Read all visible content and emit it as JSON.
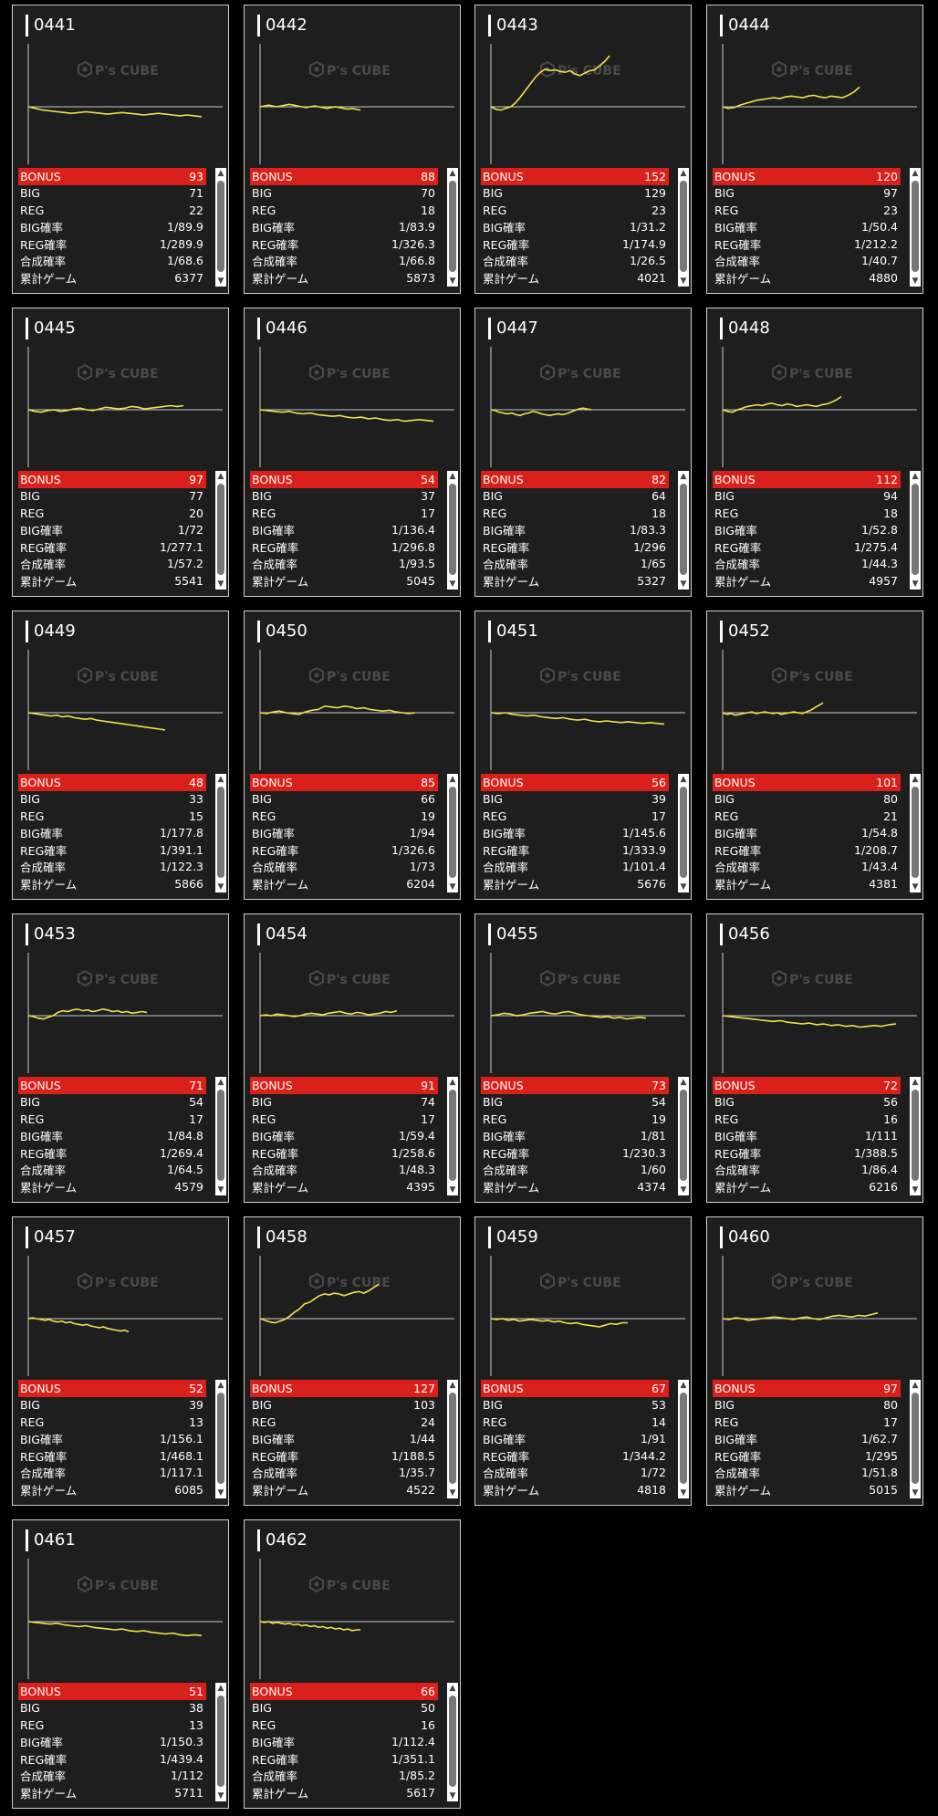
{
  "logo_text": "P's CUBE",
  "colors": {
    "line": "#f2e14a",
    "bonus_bg": "#d9201b",
    "card_bg": "#1e1e1e",
    "axis": "#cccccc"
  },
  "icons": {
    "scroll_up": "▲",
    "scroll_down": "▼"
  },
  "labels": {
    "bonus": "BONUS",
    "big": "BIG",
    "reg": "REG",
    "big_rate": "BIG確率",
    "reg_rate": "REG確率",
    "total_rate": "合成確率",
    "games": "累計ゲーム"
  },
  "machines": [
    {
      "id": "0441",
      "bonus": "93",
      "big": "71",
      "reg": "22",
      "big_rate": "1/89.9",
      "reg_rate": "1/289.9",
      "total_rate": "1/68.6",
      "games": "6377",
      "trend": [
        0,
        -2,
        -4,
        -5,
        -6,
        -7,
        -8,
        -7,
        -6,
        -7,
        -8,
        -9,
        -8,
        -7,
        -8,
        -9,
        -10,
        -9,
        -8,
        -9,
        -10,
        -11,
        -10,
        -11,
        -12
      ]
    },
    {
      "id": "0442",
      "bonus": "88",
      "big": "70",
      "reg": "18",
      "big_rate": "1/83.9",
      "reg_rate": "1/326.3",
      "total_rate": "1/66.8",
      "games": "5873",
      "trend": [
        0,
        1,
        2,
        1,
        0,
        1,
        2,
        3,
        2,
        1,
        0,
        -1,
        0,
        1,
        0,
        -1,
        -2,
        -1,
        0,
        -1,
        -2,
        -3,
        -2,
        -3,
        -4
      ]
    },
    {
      "id": "0443",
      "bonus": "152",
      "big": "129",
      "reg": "23",
      "big_rate": "1/31.2",
      "reg_rate": "1/174.9",
      "total_rate": "1/26.5",
      "games": "4021",
      "trend": [
        0,
        -3,
        -4,
        -2,
        0,
        5,
        12,
        20,
        28,
        36,
        42,
        46,
        44,
        45,
        43,
        42,
        44,
        40,
        38,
        41,
        44,
        45,
        50,
        55,
        62
      ]
    },
    {
      "id": "0444",
      "bonus": "120",
      "big": "97",
      "reg": "23",
      "big_rate": "1/50.4",
      "reg_rate": "1/212.2",
      "total_rate": "1/40.7",
      "games": "4880",
      "trend": [
        0,
        -2,
        -1,
        2,
        4,
        6,
        8,
        9,
        10,
        11,
        10,
        12,
        13,
        12,
        11,
        13,
        14,
        12,
        11,
        13,
        12,
        11,
        14,
        18,
        24
      ]
    },
    {
      "id": "0445",
      "bonus": "97",
      "big": "77",
      "reg": "20",
      "big_rate": "1/72",
      "reg_rate": "1/277.1",
      "total_rate": "1/57.2",
      "games": "5541",
      "trend": [
        0,
        -2,
        -3,
        -1,
        0,
        -2,
        -1,
        1,
        2,
        0,
        -1,
        1,
        3,
        2,
        1,
        2,
        4,
        3,
        1,
        2,
        3,
        4,
        5,
        4,
        5
      ]
    },
    {
      "id": "0446",
      "bonus": "54",
      "big": "37",
      "reg": "17",
      "big_rate": "1/136.4",
      "reg_rate": "1/296.8",
      "total_rate": "1/93.5",
      "games": "5045",
      "trend": [
        0,
        -1,
        -2,
        -3,
        -2,
        -4,
        -5,
        -4,
        -6,
        -7,
        -8,
        -7,
        -9,
        -10,
        -9,
        -11,
        -10,
        -12,
        -13,
        -12,
        -14,
        -13,
        -12,
        -13,
        -14
      ]
    },
    {
      "id": "0447",
      "bonus": "82",
      "big": "64",
      "reg": "18",
      "big_rate": "1/83.3",
      "reg_rate": "1/296",
      "total_rate": "1/65",
      "games": "5327",
      "trend": [
        0,
        -1,
        -3,
        -4,
        -5,
        -4,
        -6,
        -7,
        -5,
        -4,
        -2,
        -3,
        -5,
        -6,
        -7,
        -6,
        -5,
        -6,
        -5,
        -3,
        -1,
        1,
        2,
        1,
        0
      ]
    },
    {
      "id": "0448",
      "bonus": "112",
      "big": "94",
      "reg": "18",
      "big_rate": "1/52.8",
      "reg_rate": "1/275.4",
      "total_rate": "1/44.3",
      "games": "4957",
      "trend": [
        0,
        -2,
        -3,
        0,
        2,
        4,
        5,
        6,
        5,
        7,
        8,
        6,
        5,
        7,
        6,
        4,
        5,
        6,
        5,
        4,
        6,
        7,
        9,
        12,
        16
      ]
    },
    {
      "id": "0449",
      "bonus": "48",
      "big": "33",
      "reg": "15",
      "big_rate": "1/177.8",
      "reg_rate": "1/391.1",
      "total_rate": "1/122.3",
      "games": "5866",
      "trend": [
        0,
        -1,
        -2,
        -3,
        -4,
        -3,
        -5,
        -4,
        -6,
        -7,
        -8,
        -7,
        -9,
        -10,
        -11,
        -12,
        -13,
        -14,
        -15,
        -16,
        -17,
        -18,
        -19,
        -20,
        -21
      ]
    },
    {
      "id": "0450",
      "bonus": "85",
      "big": "66",
      "reg": "19",
      "big_rate": "1/94",
      "reg_rate": "1/326.6",
      "total_rate": "1/73",
      "games": "6204",
      "trend": [
        0,
        -1,
        1,
        2,
        0,
        -1,
        -2,
        1,
        3,
        4,
        8,
        7,
        6,
        8,
        7,
        5,
        6,
        4,
        3,
        2,
        3,
        1,
        0,
        -1,
        0
      ]
    },
    {
      "id": "0451",
      "bonus": "56",
      "big": "39",
      "reg": "17",
      "big_rate": "1/145.6",
      "reg_rate": "1/333.9",
      "total_rate": "1/101.4",
      "games": "5676",
      "trend": [
        0,
        -1,
        0,
        -2,
        -3,
        -4,
        -3,
        -5,
        -6,
        -7,
        -6,
        -8,
        -9,
        -8,
        -10,
        -11,
        -10,
        -11,
        -12,
        -11,
        -12,
        -13,
        -12,
        -13,
        -14
      ]
    },
    {
      "id": "0452",
      "bonus": "101",
      "big": "80",
      "reg": "21",
      "big_rate": "1/54.8",
      "reg_rate": "1/208.7",
      "total_rate": "1/43.4",
      "games": "4381",
      "trend": [
        0,
        -2,
        -1,
        -3,
        -2,
        -1,
        0,
        1,
        -1,
        0,
        1,
        0,
        -1,
        0,
        -2,
        -1,
        0,
        1,
        0,
        -1,
        1,
        3,
        6,
        9,
        12
      ]
    },
    {
      "id": "0453",
      "bonus": "71",
      "big": "54",
      "reg": "17",
      "big_rate": "1/84.8",
      "reg_rate": "1/269.4",
      "total_rate": "1/64.5",
      "games": "4579",
      "trend": [
        0,
        -1,
        -3,
        -4,
        -2,
        0,
        4,
        6,
        5,
        7,
        8,
        6,
        7,
        5,
        6,
        8,
        7,
        5,
        6,
        4,
        5,
        3,
        4,
        5,
        4
      ]
    },
    {
      "id": "0454",
      "bonus": "91",
      "big": "74",
      "reg": "17",
      "big_rate": "1/59.4",
      "reg_rate": "1/258.6",
      "total_rate": "1/48.3",
      "games": "4395",
      "trend": [
        0,
        1,
        0,
        2,
        1,
        0,
        -1,
        0,
        2,
        3,
        2,
        1,
        3,
        4,
        5,
        3,
        2,
        4,
        3,
        1,
        2,
        3,
        5,
        4,
        6
      ]
    },
    {
      "id": "0455",
      "bonus": "73",
      "big": "54",
      "reg": "19",
      "big_rate": "1/81",
      "reg_rate": "1/230.3",
      "total_rate": "1/60",
      "games": "4374",
      "trend": [
        0,
        1,
        3,
        2,
        0,
        1,
        3,
        4,
        5,
        3,
        2,
        4,
        5,
        3,
        1,
        0,
        -1,
        -2,
        -1,
        -3,
        -2,
        -4,
        -3,
        -2,
        -3
      ]
    },
    {
      "id": "0456",
      "bonus": "72",
      "big": "56",
      "reg": "16",
      "big_rate": "1/111",
      "reg_rate": "1/388.5",
      "total_rate": "1/86.4",
      "games": "6216",
      "trend": [
        0,
        -1,
        -2,
        -3,
        -4,
        -5,
        -6,
        -7,
        -6,
        -8,
        -9,
        -10,
        -9,
        -11,
        -10,
        -12,
        -11,
        -13,
        -12,
        -14,
        -13,
        -12,
        -13,
        -11,
        -10
      ]
    },
    {
      "id": "0457",
      "bonus": "52",
      "big": "39",
      "reg": "13",
      "big_rate": "1/156.1",
      "reg_rate": "1/468.1",
      "total_rate": "1/117.1",
      "games": "6085",
      "trend": [
        0,
        1,
        0,
        -1,
        -2,
        -1,
        -3,
        -4,
        -3,
        -5,
        -4,
        -6,
        -7,
        -8,
        -7,
        -9,
        -10,
        -11,
        -10,
        -12,
        -13,
        -14,
        -15,
        -14,
        -16
      ]
    },
    {
      "id": "0458",
      "bonus": "127",
      "big": "103",
      "reg": "24",
      "big_rate": "1/44",
      "reg_rate": "1/188.5",
      "total_rate": "1/35.7",
      "games": "4522",
      "trend": [
        0,
        -2,
        -4,
        -5,
        -3,
        -1,
        3,
        8,
        12,
        18,
        20,
        24,
        28,
        30,
        29,
        31,
        30,
        28,
        30,
        32,
        33,
        31,
        34,
        38,
        42
      ]
    },
    {
      "id": "0459",
      "bonus": "67",
      "big": "53",
      "reg": "14",
      "big_rate": "1/91",
      "reg_rate": "1/344.2",
      "total_rate": "1/72",
      "games": "4818",
      "trend": [
        0,
        -1,
        0,
        -2,
        -1,
        -3,
        -2,
        -1,
        -2,
        -3,
        -2,
        -4,
        -3,
        -5,
        -6,
        -5,
        -7,
        -8,
        -9,
        -10,
        -8,
        -6,
        -7,
        -5,
        -5
      ]
    },
    {
      "id": "0460",
      "bonus": "97",
      "big": "80",
      "reg": "17",
      "big_rate": "1/62.7",
      "reg_rate": "1/295",
      "total_rate": "1/51.8",
      "games": "5015",
      "trend": [
        0,
        -1,
        1,
        0,
        -2,
        -1,
        0,
        1,
        2,
        1,
        0,
        -1,
        1,
        2,
        0,
        -1,
        1,
        3,
        4,
        3,
        2,
        4,
        3,
        5,
        7
      ]
    },
    {
      "id": "0461",
      "bonus": "51",
      "big": "38",
      "reg": "13",
      "big_rate": "1/150.3",
      "reg_rate": "1/439.4",
      "total_rate": "1/112",
      "games": "5711",
      "trend": [
        0,
        -1,
        -2,
        -3,
        -2,
        -4,
        -5,
        -6,
        -5,
        -7,
        -8,
        -9,
        -10,
        -9,
        -11,
        -12,
        -11,
        -13,
        -14,
        -15,
        -14,
        -16,
        -17,
        -16,
        -17
      ]
    },
    {
      "id": "0462",
      "bonus": "66",
      "big": "50",
      "reg": "16",
      "big_rate": "1/112.4",
      "reg_rate": "1/351.1",
      "total_rate": "1/85.2",
      "games": "5617",
      "trend": [
        0,
        -1,
        0,
        -2,
        -1,
        -2,
        -3,
        -2,
        -4,
        -3,
        -5,
        -4,
        -6,
        -5,
        -7,
        -6,
        -8,
        -7,
        -9,
        -8,
        -10,
        -9,
        -11,
        -10,
        -10
      ]
    }
  ]
}
